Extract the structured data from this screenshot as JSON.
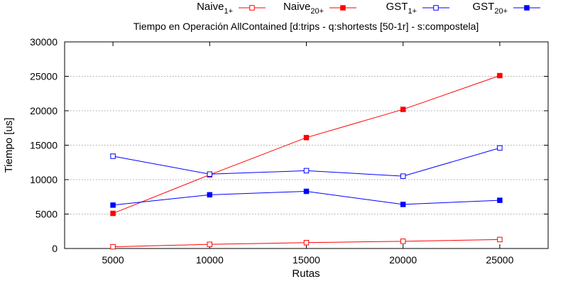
{
  "chart_data": {
    "type": "line",
    "title": "Tiempo en Operación AllContained [d:trips - q:shortests [50-1r] - s:compostela]",
    "xlabel": "Rutas",
    "ylabel": "Tiempo [us]",
    "x": [
      5000,
      10000,
      15000,
      20000,
      25000
    ],
    "xlim": [
      2500,
      27500
    ],
    "ylim": [
      0,
      30000
    ],
    "xticks": [
      5000,
      10000,
      15000,
      20000,
      25000
    ],
    "yticks": [
      0,
      5000,
      10000,
      15000,
      20000,
      25000,
      30000
    ],
    "grid": "horizontal",
    "legend_position": "top",
    "series": [
      {
        "name_base": "Naive",
        "name_sub": "1+",
        "color": "#ff0000",
        "marker": "open-square",
        "values": [
          250,
          600,
          850,
          1050,
          1300
        ]
      },
      {
        "name_base": "Naive",
        "name_sub": "20+",
        "color": "#ff0000",
        "marker": "filled-square",
        "values": [
          5100,
          10700,
          16100,
          20200,
          25100
        ]
      },
      {
        "name_base": "GST",
        "name_sub": "1+",
        "color": "#0000ff",
        "marker": "open-square",
        "values": [
          13400,
          10800,
          11300,
          10500,
          14600
        ]
      },
      {
        "name_base": "GST",
        "name_sub": "20+",
        "color": "#0000ff",
        "marker": "filled-square",
        "values": [
          6300,
          7800,
          8300,
          6400,
          7000
        ]
      }
    ]
  }
}
